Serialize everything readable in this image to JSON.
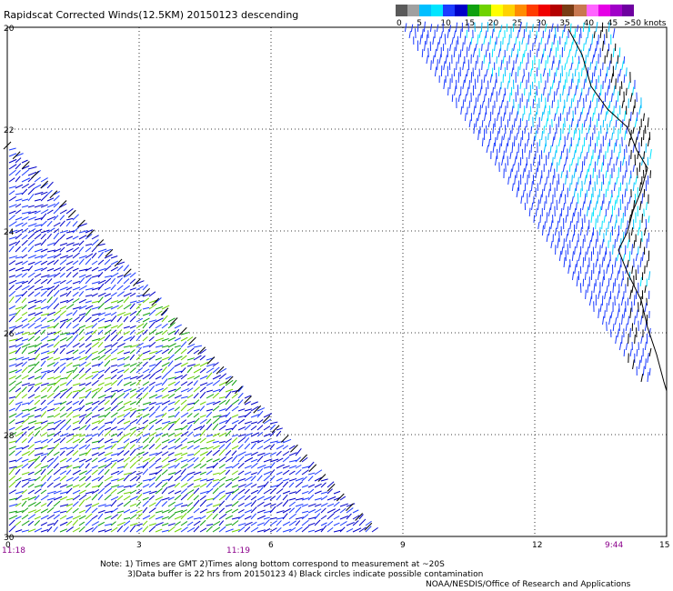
{
  "title": "Rapidscat Corrected Winds(12.5KM) 20150123 descending",
  "legend": {
    "colors": [
      "#5a5a5a",
      "#a0a0a0",
      "#00bfff",
      "#00e5ff",
      "#1c3cff",
      "#0000c8",
      "#0fa00f",
      "#6ed200",
      "#ffff00",
      "#ffd200",
      "#ff8c00",
      "#ff3c00",
      "#f00000",
      "#b40000",
      "#783c14",
      "#c87850",
      "#ff64ff",
      "#e600e6",
      "#a000c8",
      "#6e00a0"
    ],
    "ticks": [
      "0",
      "5",
      "10",
      "15",
      "20",
      "25",
      "30",
      "35",
      "40",
      "45"
    ],
    "unit": ">50 knots"
  },
  "axes": {
    "y_labels": [
      "20",
      "22",
      "24",
      "26",
      "28",
      "30"
    ],
    "x_labels": [
      "0",
      "3",
      "6",
      "9",
      "12",
      "15"
    ],
    "times_left": [
      "11:18",
      "11:19"
    ],
    "time_right": "9:44",
    "time_color": "#8b008b"
  },
  "swaths": [
    {
      "name": "left-swath",
      "dominant_colors": [
        "#1c3cff",
        "#0000c8",
        "#0fa00f",
        "#6ed200"
      ]
    },
    {
      "name": "right-swath",
      "dominant_colors": [
        "#00bfff",
        "#00e5ff",
        "#1c3cff",
        "#000000"
      ]
    }
  ],
  "notes": {
    "line1": "Note: 1) Times are GMT 2)Times along bottom correspond to measurement at ~20S",
    "line2": "3)Data buffer is 22 hrs from 20150123 4) Black circles indicate possible contamination"
  },
  "credit": "NOAA/NESDIS/Office of Research and Applications"
}
